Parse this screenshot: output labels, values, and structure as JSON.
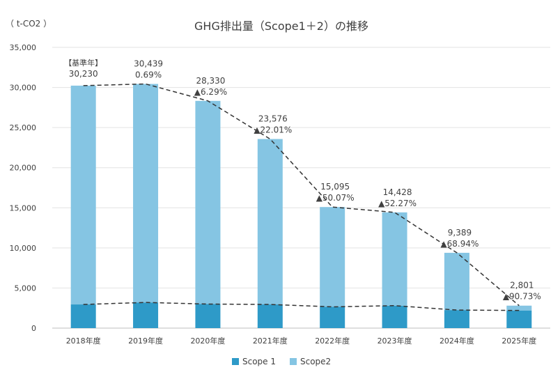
{
  "chart_data": {
    "type": "bar",
    "stacked": true,
    "title": "GHG排出量（Scope1＋2）の推移",
    "unit_label": "（ t-CO2 ）",
    "categories": [
      "2018年度",
      "2019年度",
      "2020年度",
      "2021年度",
      "2022年度",
      "2023年度",
      "2024年度",
      "2025年度"
    ],
    "series": [
      {
        "name": "Scope 1",
        "color": "#2E9AC8",
        "values": [
          2950,
          3200,
          3000,
          2950,
          2650,
          2800,
          2250,
          2200
        ]
      },
      {
        "name": "Scope2",
        "color": "#85C5E3",
        "values": [
          27280,
          27239,
          25330,
          20626,
          12445,
          11628,
          7139,
          601
        ]
      }
    ],
    "totals": [
      30230,
      30439,
      28330,
      23576,
      15095,
      14428,
      9389,
      2801
    ],
    "total_labels": [
      "30,230",
      "30,439",
      "28,330",
      "23,576",
      "15,095",
      "14,428",
      "9,389",
      "2,801"
    ],
    "change_labels": [
      "【基準年】",
      "0.69%",
      "▲6.29%",
      "▲22.01%",
      "▲50.07%",
      "▲52.27%",
      "▲68.94%",
      "▲90.73%"
    ],
    "ylim": [
      0,
      35000
    ],
    "yticks": [
      0,
      5000,
      10000,
      15000,
      20000,
      25000,
      30000,
      35000
    ],
    "ytick_labels": [
      "0",
      "5,000",
      "10,000",
      "15,000",
      "20,000",
      "25,000",
      "30,000",
      "35,000"
    ],
    "grid": true,
    "trend_lines": "dashed lines connecting Scope 1 tops and total tops",
    "legend_position": "bottom"
  }
}
